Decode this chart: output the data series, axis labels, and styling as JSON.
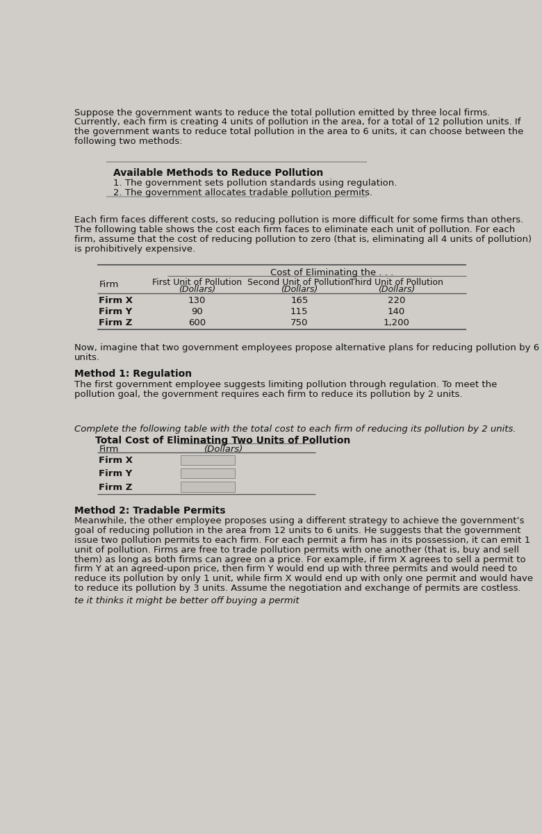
{
  "bg_color": "#d0cdc8",
  "text_color": "#1a1a1a",
  "intro_text": "Suppose the government wants to reduce the total pollution emitted by three local firms.\nCurrently, each firm is creating 4 units of pollution in the area, for a total of 12 pollution units. If\nthe government wants to reduce total pollution in the area to 6 units, it can choose between the\nfollowing two methods:",
  "box_title": "Available Methods to Reduce Pollution",
  "box_item1": "1. The government sets pollution standards using regulation.",
  "box_item2": "2. The government allocates tradable pollution permits.",
  "middle_text": "Each firm faces different costs, so reducing pollution is more difficult for some firms than others.\nThe following table shows the cost each firm faces to eliminate each unit of pollution. For each\nfirm, assume that the cost of reducing pollution to zero (that is, eliminating all 4 units of pollution)\nis prohibitively expensive.",
  "table1_header_top": "Cost of Eliminating the . . .",
  "table1_firms": [
    "Firm X",
    "Firm Y",
    "Firm Z"
  ],
  "table1_data": [
    [
      130,
      165,
      220
    ],
    [
      90,
      115,
      140
    ],
    [
      600,
      750,
      "1,200"
    ]
  ],
  "between_text": "Now, imagine that two government employees propose alternative plans for reducing pollution by 6\nunits.",
  "method1_heading": "Method 1: Regulation",
  "method1_text": "The first government employee suggests limiting pollution through regulation. To meet the\npollution goal, the government requires each firm to reduce its pollution by 2 units.",
  "italic_text": "Complete the following table with the total cost to each firm of reducing its pollution by 2 units.",
  "table2_title_line1": "Total Cost of Eliminating Two Units of Pollution",
  "table2_title_line2": "(Dollars)",
  "table2_firms": [
    "Firm X",
    "Firm Y",
    "Firm Z"
  ],
  "method2_heading": "Method 2: Tradable Permits",
  "method2_text": "Meanwhile, the other employee proposes using a different strategy to achieve the government’s\ngoal of reducing pollution in the area from 12 units to 6 units. He suggests that the government\nissue two pollution permits to each firm. For each permit a firm has in its possession, it can emit 1\nunit of pollution. Firms are free to trade pollution permits with one another (that is, buy and sell\nthem) as long as both firms can agree on a price. For example, if firm X agrees to sell a permit to\nfirm Y at an agreed-upon price, then firm Y would end up with three permits and would need to\nreduce its pollution by only 1 unit, while firm X would end up with only one permit and would have\nto reduce its pollution by 3 units. Assume the negotiation and exchange of permits are costless.",
  "last_line": "te it thinks it might be better off buying a permit"
}
